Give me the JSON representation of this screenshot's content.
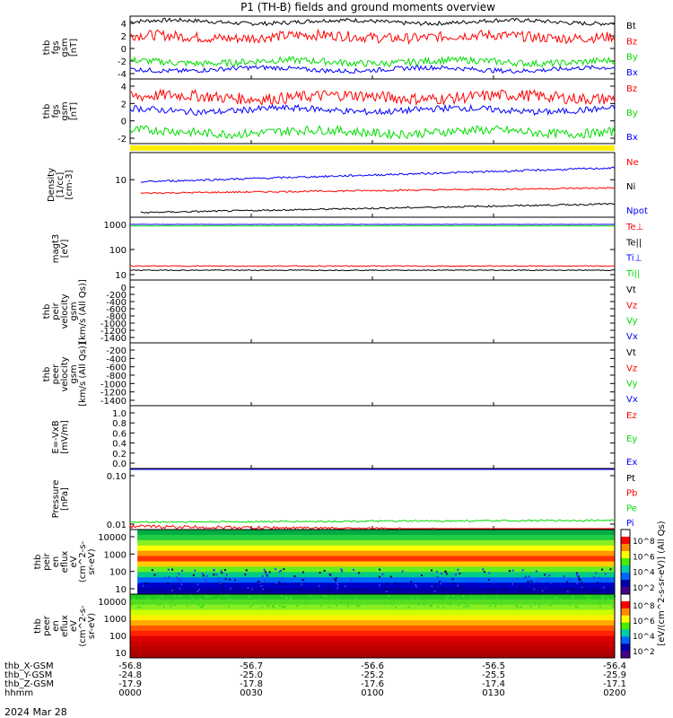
{
  "title": "P1 (TH-B) fields and ground moments overview",
  "footer": {
    "rows": [
      {
        "label": "thb_X-GSM",
        "values": [
          "-56.8",
          "-56.7",
          "-56.6",
          "-56.5",
          "-56.4"
        ]
      },
      {
        "label": "thb_Y-GSM",
        "values": [
          "-24.8",
          "-25.0",
          "-25.2",
          "-25.5",
          "-25.9"
        ]
      },
      {
        "label": "thb_Z-GSM",
        "values": [
          "-17.9",
          "-17.8",
          "-17.6",
          "-17.4",
          "-17.1"
        ]
      },
      {
        "label": "hhmm",
        "values": [
          "0000",
          "0030",
          "0100",
          "0130",
          "0200"
        ]
      }
    ],
    "date": "2024 Mar 28"
  },
  "colors": {
    "black": "#000000",
    "red": "#ff0000",
    "green": "#00dd00",
    "blue": "#0000ff",
    "yellow": "#ffee00"
  },
  "chart_data": [
    {
      "type": "line",
      "ylabel": [
        "thb",
        "fgs",
        "gsm",
        "[nT]"
      ],
      "yticks": [
        "4",
        "2",
        "0",
        "-2",
        "-4"
      ],
      "ylim": [
        -5,
        6
      ],
      "series": [
        {
          "name": "Bt",
          "color": "black",
          "level": 5.0,
          "noise": 0.35
        },
        {
          "name": "Bz",
          "color": "red",
          "level": 2.4,
          "noise": 0.9
        },
        {
          "name": "By",
          "color": "green",
          "level": -2.0,
          "noise": 0.6
        },
        {
          "name": "Bx",
          "color": "blue",
          "level": -3.3,
          "noise": 0.4
        }
      ]
    },
    {
      "type": "line",
      "ylabel": [
        "thb",
        "fgs",
        "gsm",
        "[nT]"
      ],
      "yticks": [
        "4",
        "2",
        "0",
        "-2"
      ],
      "ylim": [
        -4,
        6
      ],
      "series": [
        {
          "name": "Bz",
          "color": "red",
          "level": 3.2,
          "noise": 0.9
        },
        {
          "name": "By",
          "color": "green",
          "level": -2.2,
          "noise": 0.7
        },
        {
          "name": "Bx",
          "color": "blue",
          "level": 1.2,
          "noise": 0.5
        }
      ]
    },
    {
      "type": "line",
      "ylabel": [
        "Density",
        "[1/cc]",
        "[cm-3]"
      ],
      "yticks": [
        "10"
      ],
      "scale": "log",
      "series": [
        {
          "name": "Ne",
          "color": "red",
          "start": 5,
          "end": 7,
          "noise": 0.05
        },
        {
          "name": "Ni",
          "color": "black",
          "start": 1.5,
          "end": 2.6,
          "noise": 0.05
        },
        {
          "name": "Npot",
          "color": "blue",
          "start": 10,
          "end": 24,
          "noise": 0.06
        }
      ]
    },
    {
      "type": "line",
      "ylabel": [
        "magt3",
        "[eV]"
      ],
      "yticks": [
        "1000",
        "100",
        "10"
      ],
      "scale": "log",
      "series": [
        {
          "name": "Te⊥",
          "color": "red",
          "start": 22,
          "end": 22,
          "noise": 0.04
        },
        {
          "name": "Te||",
          "color": "black",
          "start": 15,
          "end": 15,
          "noise": 0.04
        },
        {
          "name": "Ti⊥",
          "color": "blue",
          "start": 1000,
          "end": 1000,
          "noise": 0.01
        },
        {
          "name": "Ti||",
          "color": "green",
          "start": 870,
          "end": 870,
          "noise": 0.01
        }
      ]
    },
    {
      "type": "line",
      "ylabel": [
        "thb",
        "peir",
        "velocity",
        "gsm",
        "[km/s (All Qs)]"
      ],
      "yticks": [
        "0",
        "-200",
        "-400",
        "-600",
        "-800",
        "-1000",
        "-1200",
        "-1400"
      ],
      "series": [
        {
          "name": "Vt",
          "color": "black"
        },
        {
          "name": "Vz",
          "color": "red"
        },
        {
          "name": "Vy",
          "color": "green"
        },
        {
          "name": "Vx",
          "color": "blue"
        }
      ]
    },
    {
      "type": "line",
      "ylabel": [
        "thb",
        "peer",
        "velocity",
        "gsm",
        "[km/s (All Qs)]"
      ],
      "yticks": [
        "-200",
        "-400",
        "-600",
        "-800",
        "-1000",
        "-1200",
        "-1400"
      ],
      "series": [
        {
          "name": "Vt",
          "color": "black"
        },
        {
          "name": "Vz",
          "color": "red"
        },
        {
          "name": "Vy",
          "color": "green"
        },
        {
          "name": "Vx",
          "color": "blue"
        }
      ]
    },
    {
      "type": "line",
      "ylabel": [
        "E=-VxB",
        "[mV/m]"
      ],
      "yticks": [
        "1.0",
        "0.8",
        "0.6",
        "0.4",
        "0.2",
        "0.0"
      ],
      "series": [
        {
          "name": "Ez",
          "color": "red"
        },
        {
          "name": "Ey",
          "color": "green"
        },
        {
          "name": "Ex",
          "color": "blue"
        }
      ]
    },
    {
      "type": "line",
      "ylabel": [
        "Pressure",
        "[nPa]"
      ],
      "yticks": [
        "0.10",
        "0.01"
      ],
      "scale": "log",
      "series": [
        {
          "name": "Pt",
          "color": "black",
          "start": 0.22,
          "end": 0.24,
          "noise": 0.03
        },
        {
          "name": "Pb",
          "color": "red",
          "start": 0.009,
          "end": 0.007,
          "noise": 0.08
        },
        {
          "name": "Pe",
          "color": "green",
          "start": 0.011,
          "end": 0.012,
          "noise": 0.04
        },
        {
          "name": "Pi",
          "color": "blue",
          "start": 0.21,
          "end": 0.23,
          "noise": 0.03
        }
      ]
    },
    {
      "type": "heatmap",
      "ylabel": [
        "thb",
        "peir",
        "en",
        "eflux",
        "eV",
        "(cm^2-s-",
        "sr-eV)"
      ],
      "yticks": [
        "10000",
        "1000",
        "100",
        "10"
      ],
      "colorbar_ticks": [
        "10^8",
        "10^6",
        "10^4",
        "10^2"
      ]
    },
    {
      "type": "heatmap",
      "ylabel": [
        "thb",
        "peer",
        "en",
        "eflux",
        "eV",
        "(cm^2-s-",
        "sr-eV)"
      ],
      "yticks": [
        "10000",
        "1000",
        "100",
        "10"
      ],
      "colorbar_ticks": [
        "10^8",
        "10^6",
        "10^4",
        "10^2"
      ]
    }
  ],
  "colorbar_label": "[eV/(cm^2-s-sr-eV)] (All Qs)"
}
